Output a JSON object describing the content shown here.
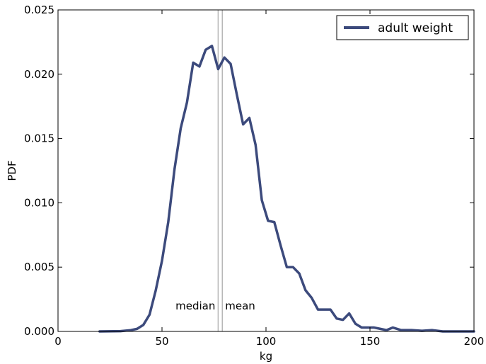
{
  "chart_data": {
    "type": "line",
    "xlabel": "kg",
    "ylabel": "PDF",
    "xlim": [
      0,
      200
    ],
    "ylim": [
      0,
      0.025
    ],
    "x_ticks": [
      0,
      50,
      100,
      150,
      200
    ],
    "y_ticks": [
      0.0,
      0.005,
      0.01,
      0.015,
      0.02,
      0.025
    ],
    "x_tick_labels": [
      "0",
      "50",
      "100",
      "150",
      "200"
    ],
    "y_tick_labels": [
      "0.000",
      "0.005",
      "0.010",
      "0.015",
      "0.020",
      "0.025"
    ],
    "grid": false,
    "legend": {
      "position": "top-right",
      "entries": [
        "adult weight"
      ]
    },
    "series": [
      {
        "name": "adult weight",
        "color": "#3c4a7c",
        "x": [
          20,
          30,
          35,
          38,
          41,
          44,
          47,
          50,
          53,
          56,
          59,
          62,
          65,
          68,
          71,
          74,
          77,
          80,
          83,
          86,
          89,
          92,
          95,
          98,
          101,
          104,
          107,
          110,
          113,
          116,
          119,
          122,
          125,
          128,
          131,
          134,
          137,
          140,
          143,
          146,
          149,
          152,
          155,
          158,
          161,
          165,
          170,
          175,
          180,
          185,
          190,
          200
        ],
        "y": [
          0.0,
          2e-05,
          0.0001,
          0.0002,
          0.0005,
          0.0013,
          0.0032,
          0.0055,
          0.0085,
          0.0126,
          0.0158,
          0.0178,
          0.0209,
          0.0206,
          0.0219,
          0.0222,
          0.0204,
          0.0213,
          0.0208,
          0.0184,
          0.0161,
          0.0166,
          0.0145,
          0.0102,
          0.0086,
          0.0085,
          0.0067,
          0.005,
          0.005,
          0.0045,
          0.0032,
          0.0026,
          0.0017,
          0.0017,
          0.0017,
          0.001,
          0.0009,
          0.0014,
          0.0006,
          0.0003,
          0.0003,
          0.0003,
          0.0002,
          0.0001,
          0.0003,
          0.0001,
          0.0001,
          5e-05,
          0.0001,
          0.0,
          0.0,
          0.0
        ]
      }
    ],
    "annotations": [
      {
        "text": "median",
        "x": 77
      },
      {
        "text": "mean",
        "x": 79
      }
    ],
    "vertical_lines": [
      77,
      79
    ]
  }
}
